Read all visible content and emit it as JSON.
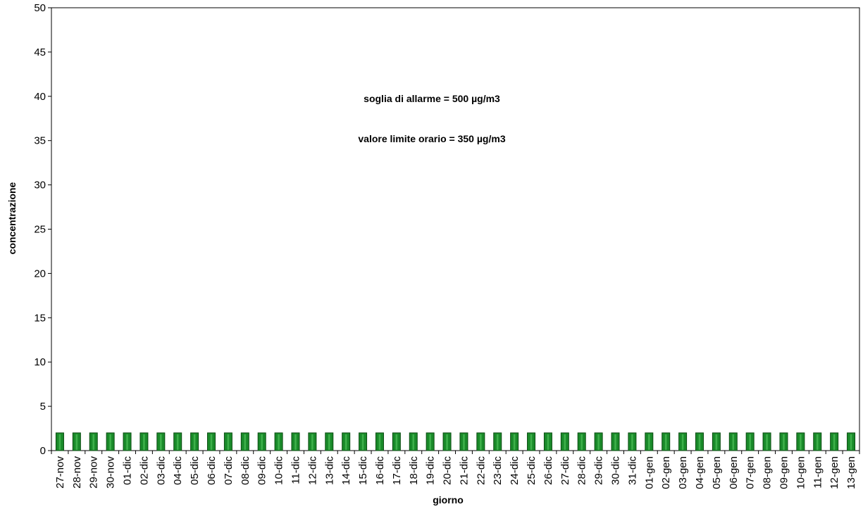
{
  "chart_data": {
    "type": "bar",
    "categories": [
      "27-nov",
      "28-nov",
      "29-nov",
      "30-nov",
      "01-dic",
      "02-dic",
      "03-dic",
      "04-dic",
      "05-dic",
      "06-dic",
      "07-dic",
      "08-dic",
      "09-dic",
      "10-dic",
      "11-dic",
      "12-dic",
      "13-dic",
      "14-dic",
      "15-dic",
      "16-dic",
      "17-dic",
      "18-dic",
      "19-dic",
      "20-dic",
      "21-dic",
      "22-dic",
      "23-dic",
      "24-dic",
      "25-dic",
      "26-dic",
      "27-dic",
      "28-dic",
      "29-dic",
      "30-dic",
      "31-dic",
      "01-gen",
      "02-gen",
      "03-gen",
      "04-gen",
      "05-gen",
      "06-gen",
      "07-gen",
      "08-gen",
      "09-gen",
      "10-gen",
      "11-gen",
      "12-gen",
      "13-gen"
    ],
    "values": [
      2,
      2,
      2,
      2,
      2,
      2,
      2,
      2,
      2,
      2,
      2,
      2,
      2,
      2,
      2,
      2,
      2,
      2,
      2,
      2,
      2,
      2,
      2,
      2,
      2,
      2,
      2,
      2,
      2,
      2,
      2,
      2,
      2,
      2,
      2,
      2,
      2,
      2,
      2,
      2,
      2,
      2,
      2,
      2,
      2,
      2,
      2,
      2
    ],
    "xlabel": "giorno",
    "ylabel": "concentrazione",
    "ylim": [
      0,
      50
    ],
    "yticks": [
      0,
      5,
      10,
      15,
      20,
      25,
      30,
      35,
      40,
      45,
      50
    ],
    "annotations": [
      "soglia di allarme = 500 µg/m3",
      "valore limite orario = 350 µg/m3"
    ],
    "grid": false,
    "bar_color": "#1a8a2a",
    "bar_edge_color": "#0a4a10"
  }
}
